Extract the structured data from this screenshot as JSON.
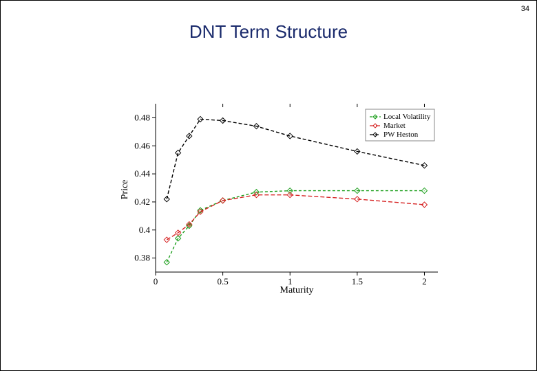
{
  "page_number": "34",
  "title": "DNT Term Structure",
  "chart": {
    "type": "line",
    "xlabel": "Maturity",
    "ylabel": "Price",
    "xlim": [
      0,
      2.1
    ],
    "ylim": [
      0.37,
      0.49
    ],
    "xticks": [
      0,
      0.5,
      1,
      1.5,
      2
    ],
    "xtick_labels": [
      "0",
      "0.5",
      "1",
      "1.5",
      "2"
    ],
    "yticks": [
      0.38,
      0.4,
      0.42,
      0.44,
      0.46,
      0.48
    ],
    "ytick_labels": [
      "0.38",
      "0.4",
      "0.42",
      "0.44",
      "0.46",
      "0.48"
    ],
    "label_fontsize": 14,
    "tick_fontsize": 13,
    "background_color": "#ffffff",
    "axis_color": "#000000",
    "tick_length_major_top": 6,
    "series": [
      {
        "name": "Local Volatility",
        "color": "#1a9e1a",
        "dash": "4,3",
        "marker": "diamond",
        "marker_size": 4,
        "x": [
          0.083,
          0.167,
          0.25,
          0.333,
          0.5,
          0.75,
          1.0,
          1.5,
          2.0
        ],
        "y": [
          0.377,
          0.394,
          0.403,
          0.414,
          0.421,
          0.427,
          0.428,
          0.428,
          0.428
        ]
      },
      {
        "name": "Market",
        "color": "#d62222",
        "dash": "6,3",
        "marker": "diamond",
        "marker_size": 4,
        "x": [
          0.083,
          0.167,
          0.25,
          0.333,
          0.5,
          0.75,
          1.0,
          1.5,
          2.0
        ],
        "y": [
          0.393,
          0.398,
          0.404,
          0.413,
          0.421,
          0.425,
          0.425,
          0.422,
          0.418
        ]
      },
      {
        "name": "PW Heston",
        "color": "#000000",
        "dash": "5,3",
        "marker": "diamond",
        "marker_size": 4,
        "x": [
          0.083,
          0.167,
          0.25,
          0.333,
          0.5,
          0.75,
          1.0,
          1.5,
          2.0
        ],
        "y": [
          0.422,
          0.455,
          0.467,
          0.479,
          0.478,
          0.474,
          0.467,
          0.456,
          0.446
        ]
      }
    ],
    "legend": {
      "position": "top-right",
      "label_local": "Local Volatility",
      "label_market": "Market",
      "label_pw": "PW Heston",
      "border_color": "#888888"
    }
  }
}
